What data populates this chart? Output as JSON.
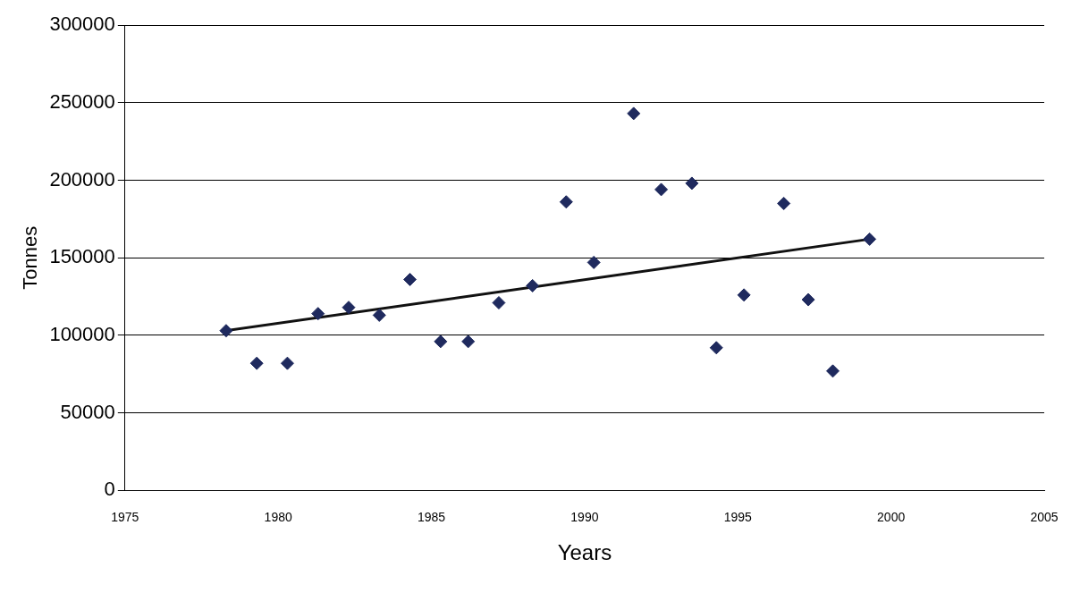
{
  "chart_data": {
    "type": "scatter",
    "xlabel": "Years",
    "ylabel": "Tonnes",
    "xlim": [
      1975,
      2005
    ],
    "xticks": [
      1975,
      1980,
      1985,
      1990,
      1995,
      2000,
      2005
    ],
    "ylim": [
      0,
      300000
    ],
    "yticks": [
      0,
      50000,
      100000,
      150000,
      200000,
      250000,
      300000
    ],
    "grid": "y",
    "legend": false,
    "series": [
      {
        "marker": "diamond",
        "color": "#1f2a5e",
        "x": [
          1978.3,
          1979.3,
          1980.3,
          1981.3,
          1982.3,
          1983.3,
          1984.3,
          1985.3,
          1986.2,
          1987.2,
          1988.3,
          1989.4,
          1990.3,
          1991.6,
          1992.5,
          1993.5,
          1994.3,
          1995.2,
          1996.5,
          1997.3,
          1998.1,
          1999.3
        ],
        "values": [
          103000,
          82000,
          82000,
          114000,
          118000,
          113000,
          136000,
          96000,
          96000,
          121000,
          132000,
          186000,
          147000,
          243000,
          194000,
          198000,
          92000,
          126000,
          185000,
          123000,
          77000,
          162000
        ]
      },
      {
        "type": "line",
        "color": "#111111",
        "x": [
          1978.3,
          1999.3
        ],
        "values": [
          103000,
          162000
        ]
      }
    ]
  }
}
